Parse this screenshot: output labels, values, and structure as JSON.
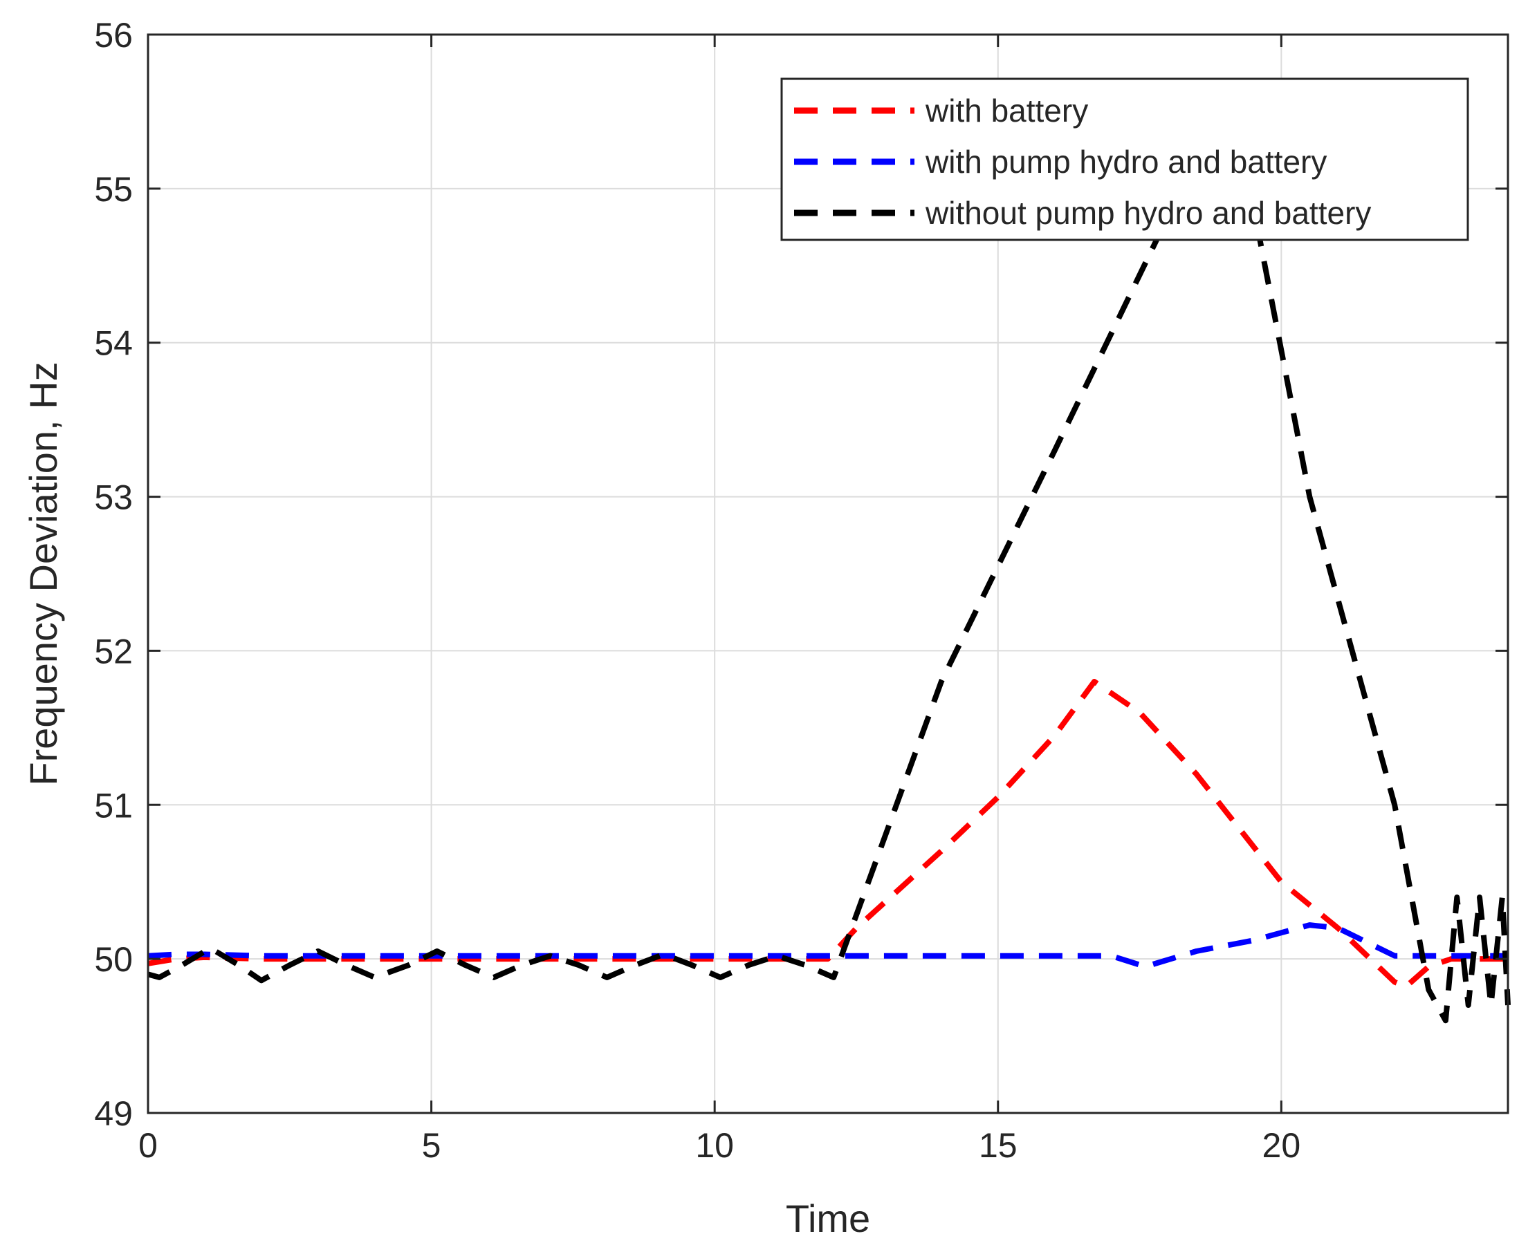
{
  "chart_data": {
    "type": "line",
    "title": "",
    "xlabel": "Time",
    "ylabel": "Frequency Deviation, Hz",
    "xlim": [
      0,
      24
    ],
    "ylim": [
      49,
      56
    ],
    "xticks": [
      0,
      5,
      10,
      15,
      20
    ],
    "yticks": [
      49,
      50,
      51,
      52,
      53,
      54,
      55,
      56
    ],
    "grid": true,
    "legend_position": "top-right",
    "series": [
      {
        "name": "with battery",
        "color": "#ff0000",
        "line_style": "dashed",
        "x": [
          0,
          0.5,
          1,
          2,
          3,
          4,
          5,
          6,
          7,
          8,
          9,
          10,
          11,
          12,
          12.5,
          14,
          15,
          16,
          16.7,
          17.5,
          18.5,
          20,
          21,
          22,
          22.2,
          22.6,
          23,
          24
        ],
        "y": [
          49.97,
          50.0,
          50.01,
          50.0,
          50.0,
          50.0,
          50.0,
          50.0,
          50.0,
          50.0,
          50.0,
          50.0,
          50.0,
          50.0,
          50.2,
          50.7,
          51.05,
          51.45,
          51.8,
          51.6,
          51.2,
          50.5,
          50.2,
          49.85,
          49.82,
          49.95,
          50.0,
          50.0
        ]
      },
      {
        "name": "with pump hydro and battery",
        "color": "#0000ff",
        "line_style": "dashed",
        "x": [
          0,
          0.5,
          1,
          2,
          3,
          4,
          5,
          6,
          7,
          8,
          9,
          10,
          11,
          12,
          13,
          14,
          15,
          16,
          17,
          17.6,
          18.5,
          19.5,
          20.5,
          21,
          22,
          23,
          24
        ],
        "y": [
          50.02,
          50.03,
          50.03,
          50.02,
          50.02,
          50.02,
          50.02,
          50.02,
          50.02,
          50.02,
          50.02,
          50.02,
          50.02,
          50.02,
          50.02,
          50.02,
          50.02,
          50.02,
          50.02,
          49.95,
          50.05,
          50.12,
          50.22,
          50.2,
          50.02,
          50.02,
          50.02
        ]
      },
      {
        "name": "without pump hydro and battery",
        "color": "#000000",
        "line_style": "dashed",
        "x": [
          0,
          0.2,
          0.6,
          1.1,
          1.6,
          2.0,
          2.5,
          3.0,
          3.5,
          4.0,
          4.6,
          5.1,
          5.6,
          6.1,
          6.6,
          7.1,
          7.6,
          8.1,
          8.6,
          9.1,
          9.6,
          10.1,
          10.6,
          11.1,
          11.6,
          12.1,
          14,
          16,
          18.5,
          19.5,
          20.5,
          22,
          22.6,
          22.9,
          23.1,
          23.3,
          23.5,
          23.7,
          23.9,
          24
        ],
        "y": [
          49.9,
          49.88,
          49.96,
          50.07,
          49.96,
          49.86,
          49.96,
          50.05,
          49.96,
          49.88,
          49.96,
          50.05,
          49.96,
          49.88,
          49.96,
          50.02,
          49.96,
          49.88,
          49.96,
          50.03,
          49.96,
          49.88,
          49.96,
          50.02,
          49.96,
          49.88,
          51.8,
          53.3,
          55.2,
          54.9,
          53.0,
          51.0,
          49.8,
          49.6,
          50.4,
          49.7,
          50.4,
          49.7,
          50.4,
          49.7
        ]
      }
    ]
  }
}
